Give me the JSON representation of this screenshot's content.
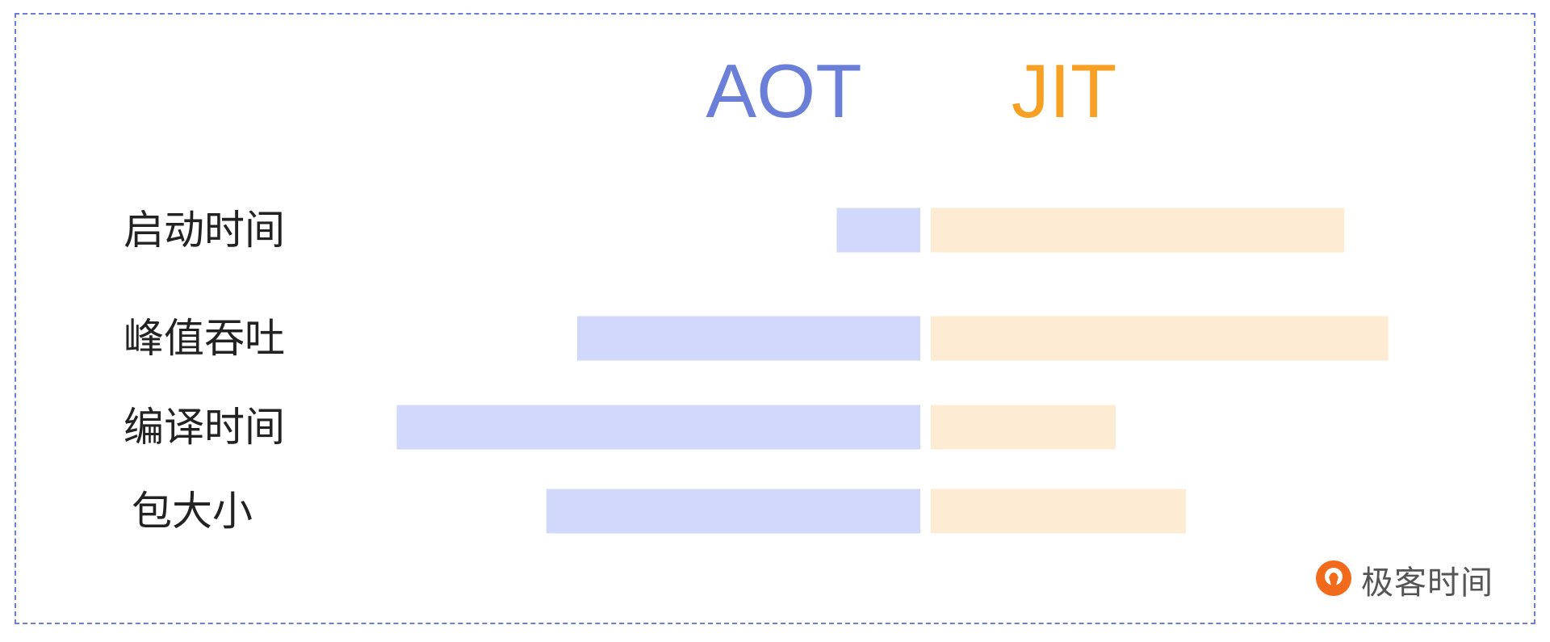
{
  "chart_data": {
    "type": "bar",
    "orientation": "horizontal-diverging",
    "categories": [
      "启动时间",
      "峰值吞吐",
      "编译时间",
      "包大小"
    ],
    "series": [
      {
        "name": "AOT",
        "values": [
          1.9,
          7.8,
          11.9,
          8.5
        ]
      },
      {
        "name": "JIT",
        "values": [
          9.4,
          10.4,
          4.2,
          5.8
        ]
      }
    ],
    "grid": false,
    "legend": "top-center"
  },
  "colors": {
    "frame": "#6b7fd9",
    "aot_title": "#6b7fd9",
    "jit_title": "#f7a023",
    "aot_bar": "#d1d8fb",
    "jit_bar": "#fdecd3",
    "label_text": "#222222",
    "brand_text": "#555555",
    "brand_icon": "#f26a1b"
  },
  "brand": {
    "name": "极客时间",
    "logo_icon": "geektime-logo-icon"
  }
}
